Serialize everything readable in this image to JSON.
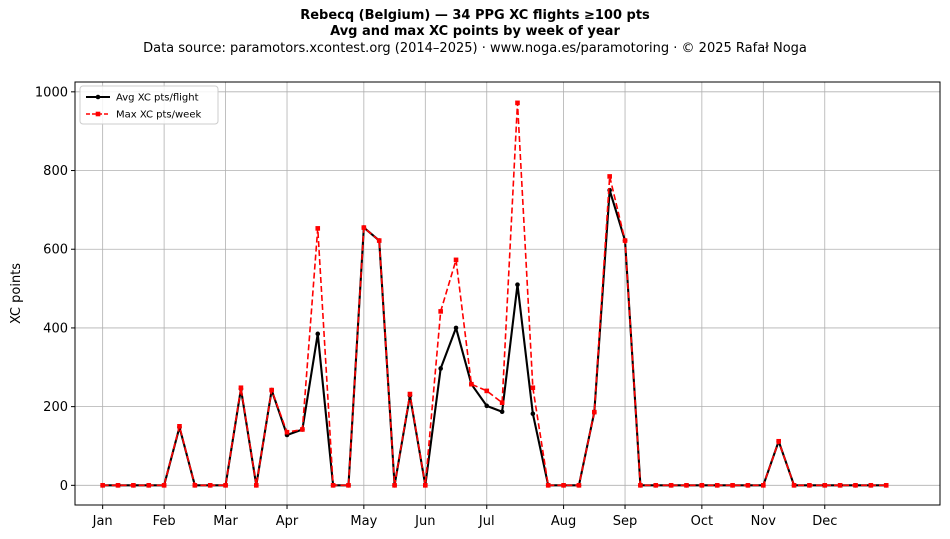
{
  "header": {
    "title_line1": "Rebecq (Belgium)  —  34 PPG XC flights ≥100 pts",
    "title_line2": "Avg and max XC points by week of year",
    "source_line": "Data source: paramotors.xcontest.org (2014–2025)  ·  www.noga.es/paramotoring  ·  © 2025 Rafał Noga"
  },
  "chart_data": {
    "type": "line",
    "ylabel": "XC points",
    "xlabel": "",
    "xlim": [
      -1.8,
      54.5
    ],
    "ylim": [
      -50,
      1025
    ],
    "grid": true,
    "legend_position": "top-left",
    "x_ticks": [
      {
        "label": "Jan",
        "x": 0
      },
      {
        "label": "Feb",
        "x": 4
      },
      {
        "label": "Mar",
        "x": 8
      },
      {
        "label": "Apr",
        "x": 12
      },
      {
        "label": "May",
        "x": 17
      },
      {
        "label": "Jun",
        "x": 21
      },
      {
        "label": "Jul",
        "x": 25
      },
      {
        "label": "Aug",
        "x": 30
      },
      {
        "label": "Sep",
        "x": 34
      },
      {
        "label": "Oct",
        "x": 39
      },
      {
        "label": "Nov",
        "x": 43
      },
      {
        "label": "Dec",
        "x": 47
      }
    ],
    "y_ticks": [
      0,
      200,
      400,
      600,
      800,
      1000
    ],
    "series": [
      {
        "name": "Avg XC pts/flight",
        "color": "#000000",
        "style": "solid",
        "marker": "circle",
        "x": [
          0,
          1,
          2,
          3,
          4,
          5,
          6,
          7,
          8,
          9,
          10,
          11,
          12,
          13,
          14,
          15,
          16,
          17,
          18,
          19,
          20,
          21,
          22,
          23,
          24,
          25,
          26,
          27,
          28,
          29,
          30,
          31,
          32,
          33,
          34,
          35,
          36,
          37,
          38,
          39,
          40,
          41,
          42,
          43,
          44,
          45,
          46,
          47,
          48,
          49,
          50,
          51
        ],
        "values": [
          0,
          0,
          0,
          0,
          0,
          148,
          0,
          0,
          0,
          245,
          0,
          242,
          128,
          142,
          385,
          0,
          0,
          655,
          622,
          0,
          228,
          0,
          297,
          400,
          257,
          202,
          187,
          510,
          182,
          0,
          0,
          0,
          186,
          750,
          622,
          0,
          0,
          0,
          0,
          0,
          0,
          0,
          0,
          0,
          112,
          0,
          0,
          0,
          0,
          0,
          0,
          0
        ]
      },
      {
        "name": "Max XC pts/week",
        "color": "#ff0000",
        "style": "dashed",
        "marker": "square",
        "x": [
          0,
          1,
          2,
          3,
          4,
          5,
          6,
          7,
          8,
          9,
          10,
          11,
          12,
          13,
          14,
          15,
          16,
          17,
          18,
          19,
          20,
          21,
          22,
          23,
          24,
          25,
          26,
          27,
          28,
          29,
          30,
          31,
          32,
          33,
          34,
          35,
          36,
          37,
          38,
          39,
          40,
          41,
          42,
          43,
          44,
          45,
          46,
          47,
          48,
          49,
          50,
          51
        ],
        "values": [
          0,
          0,
          0,
          0,
          0,
          150,
          0,
          0,
          0,
          248,
          0,
          242,
          135,
          142,
          653,
          0,
          0,
          655,
          622,
          0,
          232,
          0,
          442,
          573,
          257,
          240,
          210,
          972,
          248,
          0,
          0,
          0,
          186,
          785,
          622,
          0,
          0,
          0,
          0,
          0,
          0,
          0,
          0,
          0,
          112,
          0,
          0,
          0,
          0,
          0,
          0,
          0
        ]
      }
    ]
  }
}
